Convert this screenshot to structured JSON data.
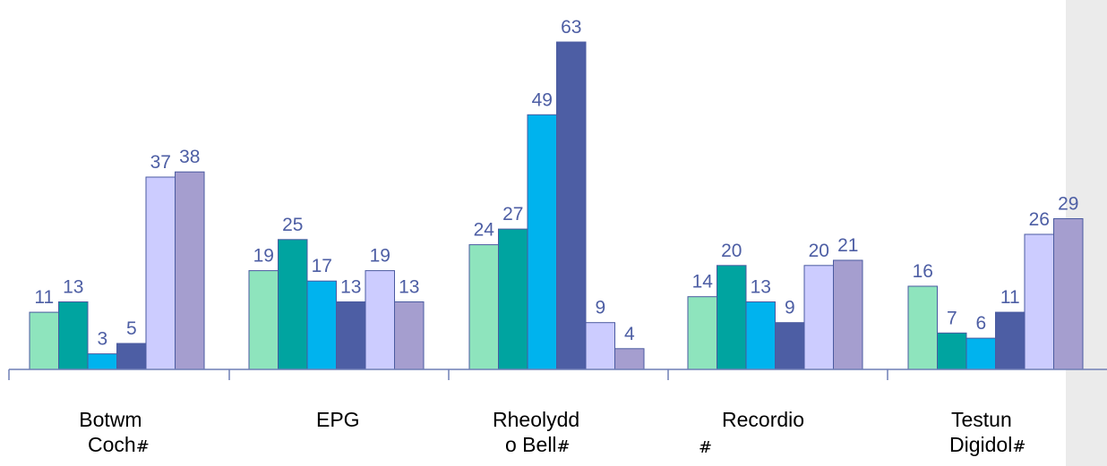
{
  "chart_data": {
    "type": "bar",
    "categories": [
      "Botwm Coch#",
      "EPG",
      "Rheolydd o Bell#",
      "Recordio #",
      "Testun Digidol#"
    ],
    "series": [
      {
        "values": [
          11,
          19,
          24,
          14,
          16
        ],
        "color": "#8ee4bd"
      },
      {
        "values": [
          13,
          25,
          27,
          20,
          7
        ],
        "color": "#00a4a0"
      },
      {
        "values": [
          3,
          17,
          49,
          13,
          6
        ],
        "color": "#00b3ee"
      },
      {
        "values": [
          5,
          13,
          63,
          9,
          11
        ],
        "color": "#4d5ea4"
      },
      {
        "values": [
          37,
          19,
          9,
          20,
          26
        ],
        "color": "#ccccff"
      },
      {
        "values": [
          38,
          13,
          4,
          21,
          29
        ],
        "color": "#a59ecf"
      }
    ],
    "ylim": [
      0,
      63
    ],
    "grid": false,
    "legend": "none"
  },
  "labels": {
    "cat0": {
      "line1": "Botwm",
      "line2": "Coch",
      "mark": "#"
    },
    "cat1": {
      "line1": "EPG"
    },
    "cat2": {
      "line1": "Rheolydd",
      "line2": "o Bell",
      "mark": "#"
    },
    "cat3": {
      "line1": "Recordio",
      "mark": "#"
    },
    "cat4": {
      "line1": "Testun",
      "line2": "Digidol",
      "mark": "#"
    }
  }
}
